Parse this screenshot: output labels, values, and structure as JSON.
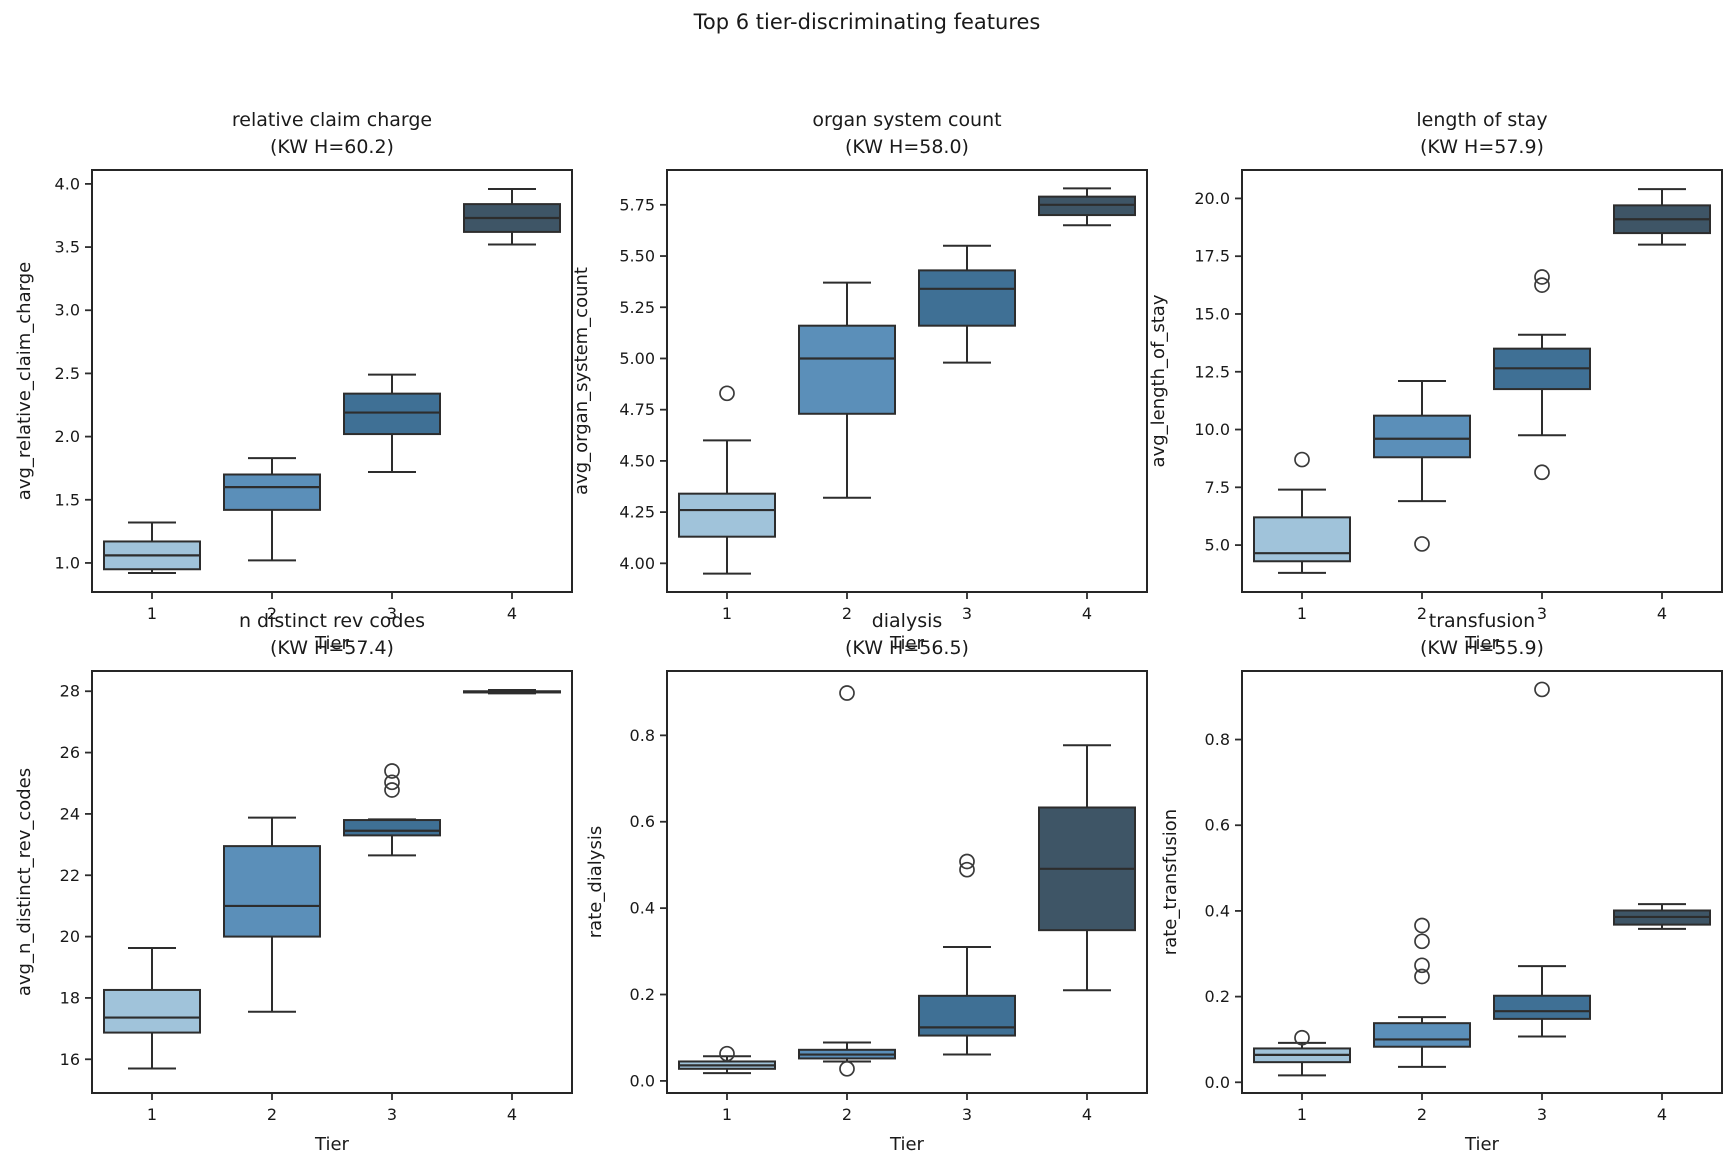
{
  "figure": {
    "suptitle": "Top 6 tier-discriminating features",
    "xlabel": "Tier",
    "xtick_labels": [
      "1",
      "2",
      "3",
      "4"
    ],
    "box_colors": [
      "#a0c3da",
      "#5b8fb9",
      "#3f7095",
      "#3e5566"
    ],
    "edge_color": "#2d2d2d",
    "outlier_color": "#3a3a3a",
    "text_color": "#1a1a1a",
    "background": "#ffffff"
  },
  "chart_data": [
    {
      "type": "box",
      "title": "relative claim charge",
      "kw_label": "(KW H=60.2)",
      "xlabel": "Tier",
      "ylabel": "avg_relative_claim_charge",
      "categories": [
        "1",
        "2",
        "3",
        "4"
      ],
      "ylim": [
        0.77,
        4.11
      ],
      "yticks": [
        1.0,
        1.5,
        2.0,
        2.5,
        3.0,
        3.5,
        4.0
      ],
      "ytick_labels": [
        "1.0",
        "1.5",
        "2.0",
        "2.5",
        "3.0",
        "3.5",
        "4.0"
      ],
      "boxes": [
        {
          "category": "1",
          "whislo": 0.92,
          "q1": 0.95,
          "med": 1.06,
          "q3": 1.17,
          "whishi": 1.32,
          "outliers": []
        },
        {
          "category": "2",
          "whislo": 1.02,
          "q1": 1.42,
          "med": 1.6,
          "q3": 1.7,
          "whishi": 1.83,
          "outliers": []
        },
        {
          "category": "3",
          "whislo": 1.72,
          "q1": 2.02,
          "med": 2.19,
          "q3": 2.34,
          "whishi": 2.49,
          "outliers": []
        },
        {
          "category": "4",
          "whislo": 3.52,
          "q1": 3.62,
          "med": 3.73,
          "q3": 3.84,
          "whishi": 3.96,
          "outliers": []
        }
      ]
    },
    {
      "type": "box",
      "title": "organ system count",
      "kw_label": "(KW H=58.0)",
      "xlabel": "Tier",
      "ylabel": "avg_organ_system_count",
      "categories": [
        "1",
        "2",
        "3",
        "4"
      ],
      "ylim": [
        3.86,
        5.92
      ],
      "yticks": [
        4.0,
        4.25,
        4.5,
        4.75,
        5.0,
        5.25,
        5.5,
        5.75
      ],
      "ytick_labels": [
        "4.00",
        "4.25",
        "4.50",
        "4.75",
        "5.00",
        "5.25",
        "5.50",
        "5.75"
      ],
      "boxes": [
        {
          "category": "1",
          "whislo": 3.95,
          "q1": 4.13,
          "med": 4.26,
          "q3": 4.34,
          "whishi": 4.6,
          "outliers": [
            4.83
          ]
        },
        {
          "category": "2",
          "whislo": 4.32,
          "q1": 4.73,
          "med": 5.0,
          "q3": 5.16,
          "whishi": 5.37,
          "outliers": []
        },
        {
          "category": "3",
          "whislo": 4.98,
          "q1": 5.16,
          "med": 5.34,
          "q3": 5.43,
          "whishi": 5.55,
          "outliers": []
        },
        {
          "category": "4",
          "whislo": 5.65,
          "q1": 5.7,
          "med": 5.75,
          "q3": 5.79,
          "whishi": 5.83,
          "outliers": []
        }
      ]
    },
    {
      "type": "box",
      "title": "length of stay",
      "kw_label": "(KW H=57.9)",
      "xlabel": "Tier",
      "ylabel": "avg_length_of_stay",
      "categories": [
        "1",
        "2",
        "3",
        "4"
      ],
      "ylim": [
        2.97,
        21.23
      ],
      "yticks": [
        5.0,
        7.5,
        10.0,
        12.5,
        15.0,
        17.5,
        20.0
      ],
      "ytick_labels": [
        "5.0",
        "7.5",
        "10.0",
        "12.5",
        "15.0",
        "17.5",
        "20.0"
      ],
      "boxes": [
        {
          "category": "1",
          "whislo": 3.8,
          "q1": 4.3,
          "med": 4.65,
          "q3": 6.2,
          "whishi": 7.4,
          "outliers": [
            8.7
          ]
        },
        {
          "category": "2",
          "whislo": 6.9,
          "q1": 8.8,
          "med": 9.6,
          "q3": 10.6,
          "whishi": 12.1,
          "outliers": [
            5.05
          ]
        },
        {
          "category": "3",
          "whislo": 9.75,
          "q1": 11.75,
          "med": 12.65,
          "q3": 13.5,
          "whishi": 14.1,
          "outliers": [
            8.15,
            16.25,
            16.6
          ]
        },
        {
          "category": "4",
          "whislo": 18.0,
          "q1": 18.5,
          "med": 19.1,
          "q3": 19.7,
          "whishi": 20.4,
          "outliers": []
        }
      ]
    },
    {
      "type": "box",
      "title": "n distinct rev codes",
      "kw_label": "(KW H=57.4)",
      "xlabel": "Tier",
      "ylabel": "avg_n_distinct_rev_codes",
      "categories": [
        "1",
        "2",
        "3",
        "4"
      ],
      "ylim": [
        14.9,
        28.66
      ],
      "yticks": [
        16,
        18,
        20,
        22,
        24,
        26,
        28
      ],
      "ytick_labels": [
        "16",
        "18",
        "20",
        "22",
        "24",
        "26",
        "28"
      ],
      "boxes": [
        {
          "category": "1",
          "whislo": 15.7,
          "q1": 16.87,
          "med": 17.36,
          "q3": 18.26,
          "whishi": 19.63,
          "outliers": []
        },
        {
          "category": "2",
          "whislo": 17.55,
          "q1": 20.0,
          "med": 21.0,
          "q3": 22.95,
          "whishi": 23.88,
          "outliers": []
        },
        {
          "category": "3",
          "whislo": 22.65,
          "q1": 23.3,
          "med": 23.45,
          "q3": 23.8,
          "whishi": 23.82,
          "outliers": [
            24.78,
            25.03,
            25.4
          ]
        },
        {
          "category": "4",
          "whislo": 27.93,
          "q1": 27.96,
          "med": 27.98,
          "q3": 28.0,
          "whishi": 28.04,
          "outliers": []
        }
      ]
    },
    {
      "type": "box",
      "title": "dialysis",
      "kw_label": "(KW H=56.5)",
      "xlabel": "Tier",
      "ylabel": "rate_dialysis",
      "categories": [
        "1",
        "2",
        "3",
        "4"
      ],
      "ylim": [
        -0.028,
        0.949
      ],
      "yticks": [
        0.0,
        0.2,
        0.4,
        0.6,
        0.8
      ],
      "ytick_labels": [
        "0.0",
        "0.2",
        "0.4",
        "0.6",
        "0.8"
      ],
      "boxes": [
        {
          "category": "1",
          "whislo": 0.018,
          "q1": 0.028,
          "med": 0.036,
          "q3": 0.045,
          "whishi": 0.057,
          "outliers": [
            0.063
          ]
        },
        {
          "category": "2",
          "whislo": 0.045,
          "q1": 0.052,
          "med": 0.061,
          "q3": 0.072,
          "whishi": 0.089,
          "outliers": [
            0.028,
            0.898
          ]
        },
        {
          "category": "3",
          "whislo": 0.061,
          "q1": 0.105,
          "med": 0.124,
          "q3": 0.197,
          "whishi": 0.31,
          "outliers": [
            0.489,
            0.508
          ]
        },
        {
          "category": "4",
          "whislo": 0.21,
          "q1": 0.349,
          "med": 0.491,
          "q3": 0.633,
          "whishi": 0.777,
          "outliers": []
        }
      ]
    },
    {
      "type": "box",
      "title": "transfusion",
      "kw_label": "(KW H=55.9)",
      "xlabel": "Tier",
      "ylabel": "rate_transfusion",
      "categories": [
        "1",
        "2",
        "3",
        "4"
      ],
      "ylim": [
        -0.025,
        0.96
      ],
      "yticks": [
        0.0,
        0.2,
        0.4,
        0.6,
        0.8
      ],
      "ytick_labels": [
        "0.0",
        "0.2",
        "0.4",
        "0.6",
        "0.8"
      ],
      "boxes": [
        {
          "category": "1",
          "whislo": 0.016,
          "q1": 0.047,
          "med": 0.064,
          "q3": 0.079,
          "whishi": 0.092,
          "outliers": [
            0.104
          ]
        },
        {
          "category": "2",
          "whislo": 0.036,
          "q1": 0.083,
          "med": 0.1,
          "q3": 0.138,
          "whishi": 0.152,
          "outliers": [
            0.247,
            0.273,
            0.329,
            0.366
          ]
        },
        {
          "category": "3",
          "whislo": 0.107,
          "q1": 0.148,
          "med": 0.166,
          "q3": 0.202,
          "whishi": 0.271,
          "outliers": [
            0.917
          ]
        },
        {
          "category": "4",
          "whislo": 0.358,
          "q1": 0.368,
          "med": 0.386,
          "q3": 0.401,
          "whishi": 0.416,
          "outliers": []
        }
      ]
    }
  ]
}
